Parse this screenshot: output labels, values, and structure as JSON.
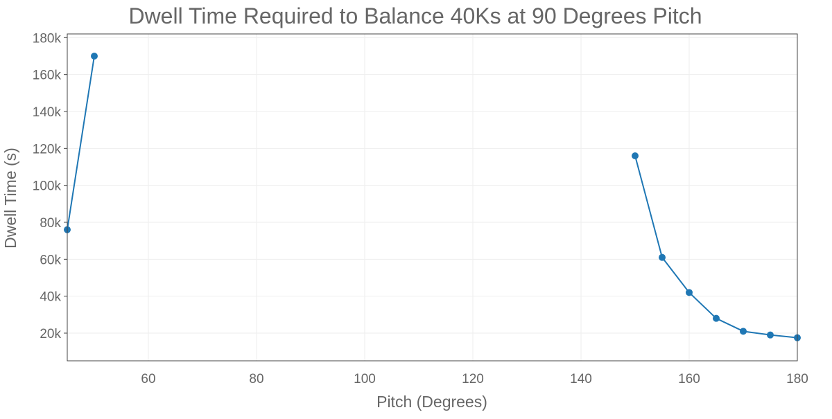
{
  "chart_data": {
    "type": "line",
    "title": "Dwell Time Required to Balance 40Ks at 90 Degrees Pitch",
    "xlabel": "Pitch (Degrees)",
    "ylabel": "Dwell Time (s)",
    "xlim": [
      45,
      180
    ],
    "ylim": [
      5000,
      182000
    ],
    "x_ticks": [
      60,
      80,
      100,
      120,
      140,
      160,
      180
    ],
    "y_ticks": [
      20000,
      40000,
      60000,
      80000,
      100000,
      120000,
      140000,
      160000,
      180000
    ],
    "y_tick_labels": [
      "20k",
      "40k",
      "60k",
      "80k",
      "100k",
      "120k",
      "140k",
      "160k",
      "180k"
    ],
    "grid": true,
    "series": [
      {
        "segments": [
          [
            [
              45,
              76000
            ],
            [
              50,
              170000
            ]
          ],
          [
            [
              150,
              116000
            ],
            [
              155,
              61000
            ],
            [
              160,
              42000
            ],
            [
              165,
              28000
            ],
            [
              170,
              21000
            ],
            [
              175,
              19000
            ],
            [
              180,
              17500
            ]
          ]
        ]
      }
    ],
    "colors": {
      "line": "#1f77b4",
      "marker": "#1f77b4",
      "grid": "#eeeeee",
      "text": "#666666",
      "frame": "#444444"
    }
  }
}
